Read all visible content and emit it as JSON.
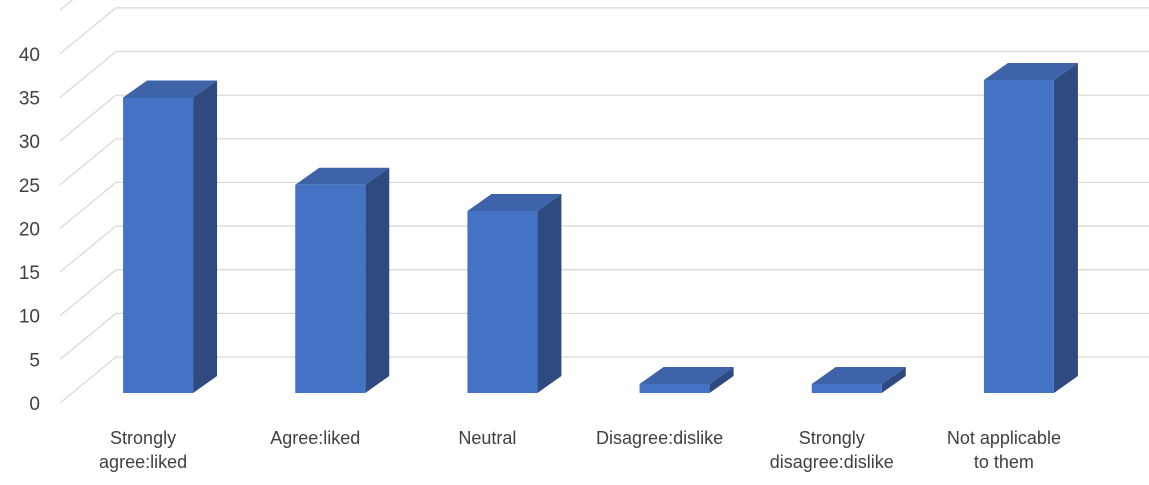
{
  "chart_data": {
    "type": "bar",
    "title": "",
    "xlabel": "",
    "ylabel": "",
    "categories": [
      [
        "Strongly",
        "agree:liked"
      ],
      [
        "Agree:liked"
      ],
      [
        "Neutral"
      ],
      [
        "Disagree:dislike"
      ],
      [
        "Strongly",
        "disagree:dislike"
      ],
      [
        "Not applicable",
        "to them"
      ]
    ],
    "values": [
      35,
      25,
      22,
      1,
      1,
      37
    ],
    "ylim": [
      0,
      45
    ],
    "yticks": [
      "0",
      "5",
      "10",
      "15",
      "20",
      "25",
      "30",
      "35",
      "40"
    ],
    "grid": true,
    "legend": "none",
    "colors": {
      "bar_front": "#4472C4",
      "bar_side": "#2F4A7F",
      "bar_top": "#3E63A8",
      "grid": "#D9D9D9",
      "text": "#404040"
    }
  }
}
